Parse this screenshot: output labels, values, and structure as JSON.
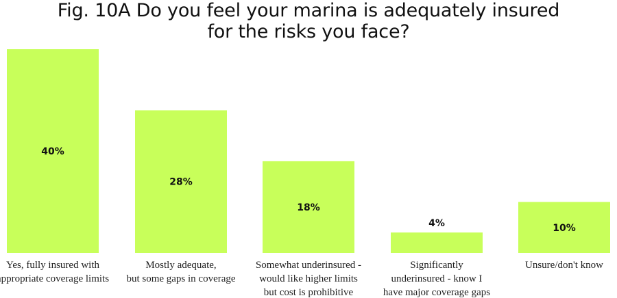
{
  "chart_data": {
    "type": "bar",
    "title_lines": [
      "Fig. 10A Do you feel your marina is adequately insured",
      "for the risks you face?"
    ],
    "categories": [
      [
        "Yes, fully insured with",
        "appropriate coverage limits"
      ],
      [
        "Mostly adequate,",
        "but some gaps in coverage"
      ],
      [
        "Somewhat underinsured -",
        "would like higher limits",
        "but cost is prohibitive"
      ],
      [
        "Significantly",
        "underinsured - know I",
        "have major coverage gaps"
      ],
      [
        "Unsure/don't know"
      ]
    ],
    "values": [
      40,
      28,
      18,
      4,
      10
    ],
    "value_labels": [
      "40%",
      "28%",
      "18%",
      "4%",
      "10%"
    ],
    "ylim": [
      0,
      40
    ],
    "grid": false,
    "colors": {
      "bar": "#c8ff5a",
      "text": "#111111"
    }
  }
}
